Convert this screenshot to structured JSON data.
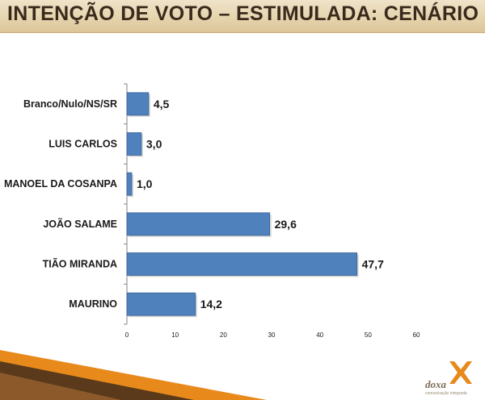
{
  "header": {
    "title": "INTENÇÃO DE VOTO – ESTIMULADA: CENÁRIO II"
  },
  "logo": {
    "name": "doxa",
    "tagline": "comunicação integrada"
  },
  "colors": {
    "bar": "#4f81bd",
    "bar_edge": "#3a6296",
    "header_bg": "#e6d4ae",
    "accent_orange": "#e8891c",
    "accent_dark": "#5a3a1a"
  },
  "chart_data": {
    "type": "bar",
    "orientation": "horizontal",
    "categories": [
      "Branco/Nulo/NS/SR",
      "LUIS CARLOS",
      "MANOEL DA COSANPA",
      "JOÃO SALAME",
      "TIÃO MIRANDA",
      "MAURINO"
    ],
    "values": [
      4.5,
      3.0,
      1.0,
      29.6,
      47.7,
      14.2
    ],
    "value_labels": [
      "4,5",
      "3,0",
      "1,0",
      "29,6",
      "47,7",
      "14,2"
    ],
    "xlim": [
      0,
      60
    ],
    "xticks": [
      0,
      10,
      20,
      30,
      40,
      50,
      60
    ],
    "title": "",
    "xlabel": "",
    "ylabel": "",
    "grid": false,
    "legend": "none"
  }
}
